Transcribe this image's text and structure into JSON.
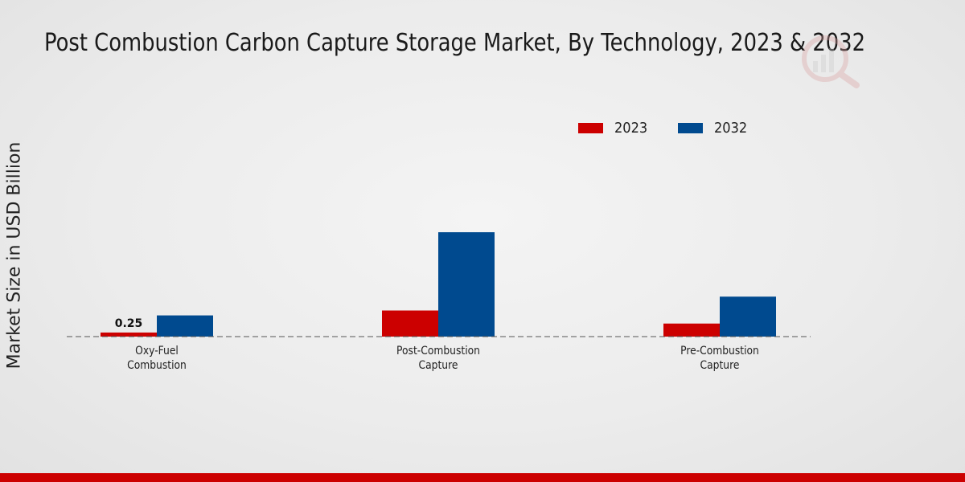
{
  "chart_data": {
    "type": "bar",
    "title": "Post Combustion Carbon Capture Storage Market, By Technology, 2023 & 2032",
    "xlabel": "",
    "ylabel": "Market Size in USD Billion",
    "categories": [
      "Oxy-Fuel Combustion",
      "Post-Combustion Capture",
      "Pre-Combustion Capture"
    ],
    "category_lines": [
      [
        "Oxy-Fuel",
        "Combustion"
      ],
      [
        "Post-Combustion",
        "Capture"
      ],
      [
        "Pre-Combustion",
        "Capture"
      ]
    ],
    "series": [
      {
        "name": "2023",
        "color": "#cc0000",
        "values": [
          0.25,
          1.6,
          0.8
        ]
      },
      {
        "name": "2032",
        "color": "#004a8f",
        "values": [
          1.3,
          6.4,
          2.45
        ]
      }
    ],
    "data_labels": [
      {
        "series": "2023",
        "category": "Oxy-Fuel Combustion",
        "text": "0.25"
      }
    ],
    "ylim": [
      0,
      10
    ],
    "grid": false,
    "legend_position": "top-center"
  }
}
